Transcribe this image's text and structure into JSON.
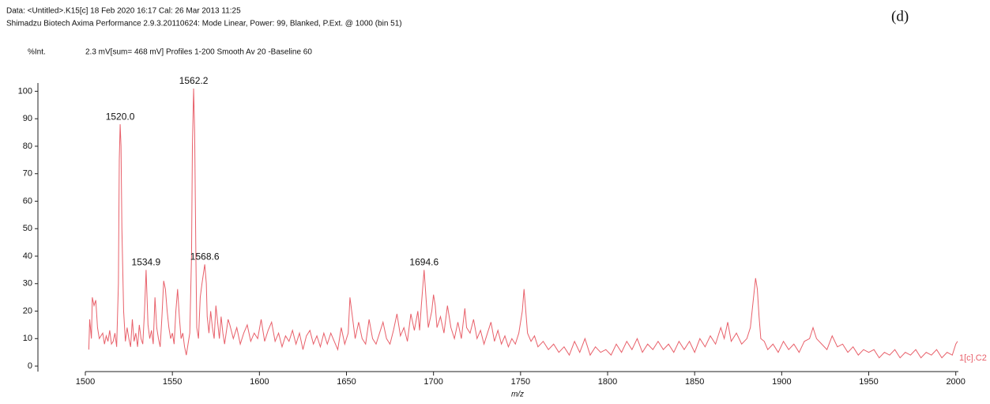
{
  "chart_data": {
    "type": "line",
    "header": [
      "Data: <Untitled>.K15[c] 18 Feb 2020 16:17 Cal: 26 Mar 2013 11:25",
      "Shimadzu Biotech Axima Performance 2.9.3.20110624: Mode Linear, Power: 99, Blanked, P.Ext. @ 1000 (bin 51)"
    ],
    "panel_label": "(d)",
    "ylabel": "%Int.",
    "subtitle": "2.3 mV[sum= 468 mV]  Profiles 1-200 Smooth Av 20 -Baseline 60",
    "xlabel": "m/z",
    "trace_label": "1[c].C2",
    "color": "#e8606a",
    "xlim": [
      1500,
      2001.5
    ],
    "ylim": [
      -2,
      103
    ],
    "xticks": [
      1500,
      1550,
      1600,
      1650,
      1700,
      1750,
      1800,
      1850,
      1900,
      1950,
      2000
    ],
    "yticks": [
      0,
      10,
      20,
      30,
      40,
      50,
      60,
      70,
      80,
      90,
      100
    ],
    "peaks": [
      {
        "x": {
          "value": 1520.0,
          "label": "1520.0"
        },
        "y": 88
      },
      {
        "x": {
          "value": 1534.9,
          "label": "1534.9"
        },
        "y": 35
      },
      {
        "x": {
          "value": 1562.2,
          "label": "1562.2"
        },
        "y": 101
      },
      {
        "x": {
          "value": 1568.6,
          "label": "1568.6"
        },
        "y": 37
      },
      {
        "x": {
          "value": 1694.6,
          "label": "1694.6"
        },
        "y": 35
      }
    ],
    "x": [
      1502,
      1502.5,
      1503.5,
      1504,
      1505,
      1506,
      1507,
      1508,
      1510,
      1511,
      1512,
      1513,
      1514,
      1515,
      1516,
      1517,
      1518,
      1519,
      1519.5,
      1520,
      1520.5,
      1521,
      1522,
      1523,
      1524,
      1525,
      1526,
      1527,
      1528,
      1529,
      1530,
      1531,
      1532,
      1533,
      1534,
      1534.9,
      1536,
      1537,
      1538,
      1539,
      1540,
      1541,
      1542,
      1543,
      1544,
      1545,
      1546,
      1547,
      1548,
      1549,
      1550,
      1551,
      1552,
      1553,
      1554,
      1555,
      1556,
      1557,
      1558,
      1559,
      1560,
      1561,
      1561.5,
      1562.2,
      1562.8,
      1563.5,
      1564,
      1565,
      1566,
      1567,
      1568.6,
      1569.5,
      1570,
      1571,
      1572,
      1573,
      1574,
      1575,
      1576,
      1577,
      1578,
      1579,
      1580,
      1582,
      1583,
      1585,
      1587,
      1589,
      1591,
      1593,
      1595,
      1597,
      1599,
      1601,
      1603,
      1605,
      1607,
      1609,
      1611,
      1613,
      1615,
      1617,
      1619,
      1621,
      1623,
      1625,
      1627,
      1629,
      1631,
      1633,
      1635,
      1637,
      1639,
      1641,
      1643,
      1645,
      1647,
      1649,
      1651,
      1652,
      1653,
      1655,
      1657,
      1659,
      1661,
      1663,
      1665,
      1667,
      1669,
      1671,
      1673,
      1675,
      1677,
      1679,
      1681,
      1683,
      1685,
      1687,
      1689,
      1691,
      1692,
      1693,
      1694.6,
      1696,
      1697,
      1699,
      1700,
      1701,
      1702,
      1704,
      1706,
      1708,
      1710,
      1712,
      1714,
      1716,
      1718,
      1719,
      1721,
      1723,
      1725,
      1727,
      1729,
      1731,
      1733,
      1735,
      1737,
      1739,
      1741,
      1743,
      1745,
      1747,
      1749,
      1751,
      1752,
      1753,
      1754,
      1756,
      1758,
      1760,
      1763,
      1766,
      1769,
      1772,
      1775,
      1778,
      1781,
      1784,
      1787,
      1790,
      1793,
      1796,
      1799,
      1802,
      1805,
      1808,
      1811,
      1814,
      1817,
      1820,
      1823,
      1826,
      1829,
      1832,
      1835,
      1838,
      1841,
      1844,
      1847,
      1850,
      1853,
      1856,
      1859,
      1862,
      1865,
      1867,
      1869,
      1871,
      1874,
      1877,
      1880,
      1882,
      1884,
      1885,
      1886,
      1887,
      1888,
      1890,
      1892,
      1895,
      1898,
      1901,
      1904,
      1907,
      1910,
      1913,
      1916,
      1918,
      1920,
      1923,
      1926,
      1929,
      1932,
      1935,
      1938,
      1941,
      1944,
      1947,
      1950,
      1953,
      1956,
      1959,
      1962,
      1965,
      1968,
      1971,
      1974,
      1977,
      1980,
      1983,
      1986,
      1989,
      1992,
      1995,
      1998,
      2000,
      2001
    ],
    "values": [
      6,
      17,
      10,
      25,
      22,
      24,
      14,
      10,
      12,
      8,
      11,
      9,
      13,
      8,
      9,
      12,
      7,
      30,
      75,
      88,
      80,
      50,
      20,
      9,
      14,
      10,
      7,
      17,
      9,
      12,
      7,
      15,
      10,
      8,
      20,
      35,
      15,
      10,
      13,
      8,
      25,
      14,
      10,
      7,
      18,
      31,
      28,
      20,
      14,
      10,
      12,
      8,
      20,
      28,
      18,
      10,
      12,
      7,
      4,
      8,
      12,
      40,
      80,
      101,
      85,
      40,
      14,
      10,
      25,
      30,
      37,
      30,
      18,
      12,
      20,
      14,
      10,
      22,
      16,
      10,
      18,
      12,
      8,
      17,
      15,
      10,
      14,
      8,
      12,
      15,
      9,
      12,
      10,
      17,
      9,
      13,
      16,
      9,
      12,
      7,
      11,
      9,
      13,
      8,
      12,
      6,
      11,
      13,
      8,
      11,
      7,
      12,
      8,
      12,
      9,
      6,
      14,
      8,
      12,
      25,
      20,
      10,
      16,
      10,
      8,
      17,
      10,
      8,
      12,
      16,
      10,
      8,
      13,
      19,
      11,
      14,
      9,
      19,
      13,
      20,
      13,
      22,
      35,
      22,
      14,
      20,
      26,
      22,
      14,
      18,
      12,
      22,
      14,
      10,
      16,
      10,
      21,
      14,
      12,
      17,
      10,
      13,
      8,
      12,
      16,
      9,
      13,
      8,
      11,
      7,
      10,
      8,
      12,
      20,
      28,
      20,
      12,
      9,
      11,
      7,
      9,
      6,
      8,
      5,
      7,
      4,
      9,
      5,
      10,
      4,
      7,
      5,
      6,
      4,
      8,
      5,
      9,
      6,
      10,
      5,
      8,
      6,
      9,
      6,
      8,
      5,
      9,
      6,
      9,
      5,
      10,
      7,
      11,
      8,
      14,
      10,
      16,
      9,
      12,
      8,
      10,
      14,
      26,
      32,
      28,
      18,
      10,
      9,
      6,
      8,
      5,
      9,
      6,
      8,
      5,
      9,
      10,
      14,
      10,
      8,
      6,
      11,
      7,
      8,
      5,
      7,
      4,
      6,
      5,
      6,
      3,
      5,
      4,
      6,
      3,
      5,
      4,
      6,
      3,
      5,
      4,
      6,
      3,
      5,
      4,
      8,
      9
    ]
  }
}
